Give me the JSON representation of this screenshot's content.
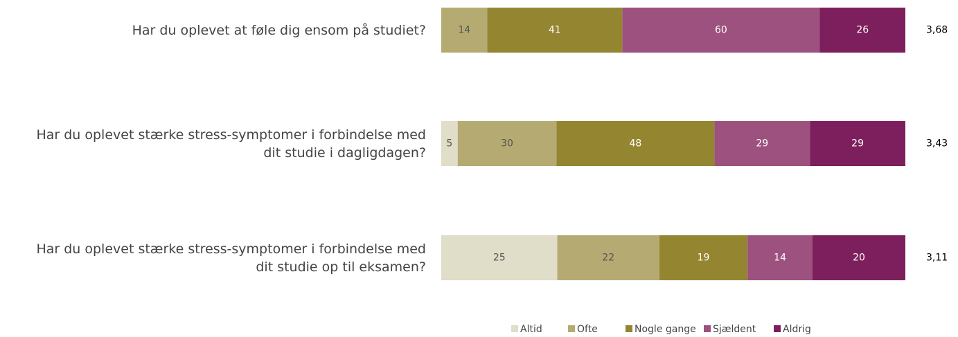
{
  "chart_data": {
    "type": "stacked-bar-horizontal",
    "categories": [
      "Har du oplevet at føle dig ensom på studiet?",
      "Har du oplevet stærke stress-symptomer i forbindelse med\ndit studie i dagligdagen?",
      "Har du oplevet stærke stress-symptomer i forbindelse med\ndit studie op til eksamen?"
    ],
    "series": [
      {
        "name": "Altid",
        "color": "#e0ddc8",
        "values": [
          null,
          5,
          25
        ]
      },
      {
        "name": "Ofte",
        "color": "#b5ab72",
        "values": [
          14,
          30,
          22
        ]
      },
      {
        "name": "Nogle gange",
        "color": "#948530",
        "values": [
          41,
          48,
          19
        ]
      },
      {
        "name": "Sjældent",
        "color": "#9c517e",
        "values": [
          60,
          29,
          14
        ]
      },
      {
        "name": "Aldrig",
        "color": "#7d1f5c",
        "values": [
          26,
          29,
          20
        ]
      }
    ],
    "annotations": [
      "3,68",
      "3,43",
      "3,11"
    ],
    "legend": "bottom"
  }
}
